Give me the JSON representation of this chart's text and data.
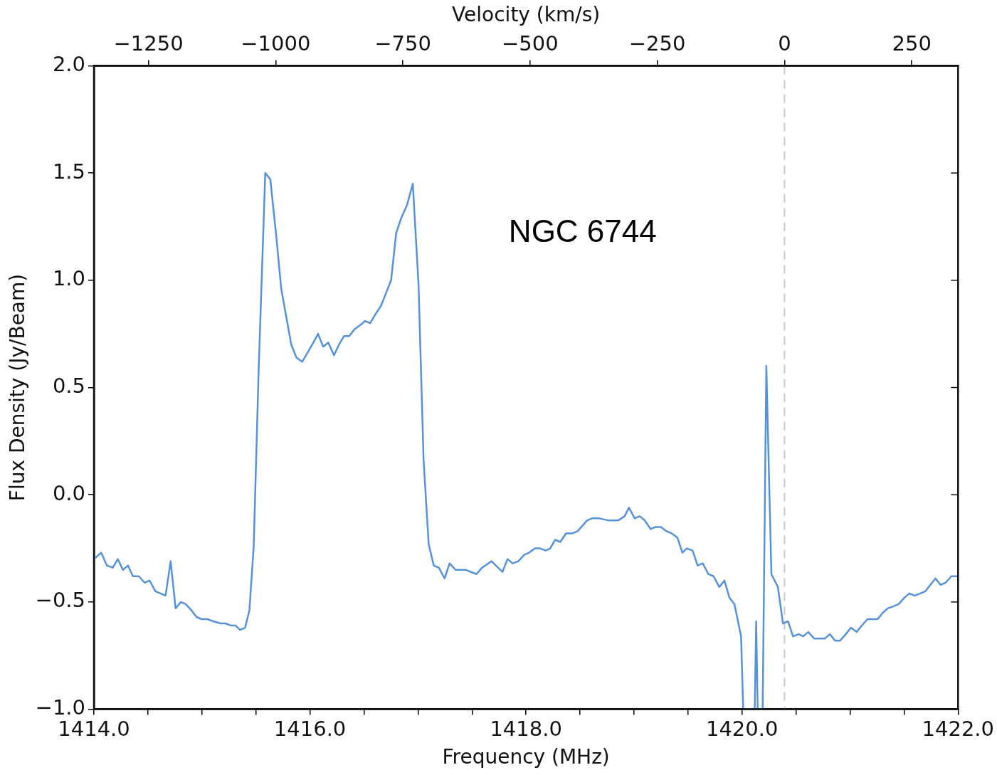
{
  "chart_data": {
    "type": "line",
    "xlabel": "Frequency (MHz)",
    "ylabel": "Flux Density (Jy/Beam)",
    "x2label": "Velocity (km/s)",
    "annotations": [
      "NGC 6744"
    ],
    "xlim": [
      1414,
      1422
    ],
    "xticks": [
      {
        "value": 1414,
        "label": "1414.0"
      },
      {
        "value": 1414.5,
        "label": null
      },
      {
        "value": 1415,
        "label": null
      },
      {
        "value": 1415.5,
        "label": null
      },
      {
        "value": 1416,
        "label": "1416.0"
      },
      {
        "value": 1416.5,
        "label": null
      },
      {
        "value": 1417,
        "label": null
      },
      {
        "value": 1417.5,
        "label": null
      },
      {
        "value": 1418,
        "label": "1418.0"
      },
      {
        "value": 1418.5,
        "label": null
      },
      {
        "value": 1419,
        "label": null
      },
      {
        "value": 1419.5,
        "label": null
      },
      {
        "value": 1420,
        "label": "1420.0"
      },
      {
        "value": 1420.5,
        "label": null
      },
      {
        "value": 1421,
        "label": null
      },
      {
        "value": 1421.5,
        "label": null
      },
      {
        "value": 1422,
        "label": "1422.0"
      }
    ],
    "x2lim": [
      -1357,
      341
    ],
    "x2ticks": [
      {
        "value": -1250,
        "label": "−1250"
      },
      {
        "value": -1000,
        "label": "−1000"
      },
      {
        "value": -750,
        "label": "−750"
      },
      {
        "value": -500,
        "label": "−500"
      },
      {
        "value": -250,
        "label": "−250"
      },
      0,
      250
    ],
    "ylim": [
      -1,
      2
    ],
    "yticks": [
      {
        "value": -1,
        "label": "−1.0"
      },
      {
        "value": -0.5,
        "label": "−0.5"
      },
      {
        "value": 0,
        "label": "0.0"
      },
      {
        "value": 0.5,
        "label": "0.5"
      },
      {
        "value": 1,
        "label": "1.0"
      },
      {
        "value": 1.5,
        "label": "1.5"
      },
      {
        "value": 2,
        "label": "2.0"
      }
    ],
    "grid": false,
    "legend": false,
    "marker": "none",
    "line_style": "solid",
    "ref_lines": [
      {
        "axis": "x2",
        "value": 0,
        "color": "#c8c8c8",
        "line_style": "dashed"
      }
    ],
    "series": [
      {
        "color": "#5792d6",
        "x": [
          1414.0,
          1414.067,
          1414.12,
          1414.174,
          1414.221,
          1414.268,
          1414.315,
          1414.361,
          1414.415,
          1414.469,
          1414.515,
          1414.569,
          1414.616,
          1414.663,
          1414.71,
          1414.756,
          1414.803,
          1414.85,
          1414.904,
          1414.95,
          1414.997,
          1415.051,
          1415.104,
          1415.171,
          1415.218,
          1415.272,
          1415.312,
          1415.352,
          1415.399,
          1415.439,
          1415.479,
          1415.526,
          1415.586,
          1415.633,
          1415.687,
          1415.734,
          1415.78,
          1415.827,
          1415.874,
          1415.928,
          1415.975,
          1416.021,
          1416.075,
          1416.122,
          1416.169,
          1416.222,
          1416.269,
          1416.316,
          1416.363,
          1416.41,
          1416.463,
          1416.51,
          1416.557,
          1416.604,
          1416.657,
          1416.704,
          1416.751,
          1416.798,
          1416.845,
          1416.898,
          1416.952,
          1417.005,
          1417.052,
          1417.099,
          1417.146,
          1417.193,
          1417.246,
          1417.293,
          1417.347,
          1417.44,
          1417.541,
          1417.594,
          1417.681,
          1417.782,
          1417.829,
          1417.876,
          1417.929,
          1417.983,
          1418.029,
          1418.083,
          1418.13,
          1418.183,
          1418.224,
          1418.27,
          1418.317,
          1418.371,
          1418.431,
          1418.478,
          1418.565,
          1418.612,
          1418.679,
          1418.766,
          1418.813,
          1418.853,
          1418.913,
          1418.953,
          1419.007,
          1419.054,
          1419.1,
          1419.154,
          1419.201,
          1419.248,
          1419.301,
          1419.348,
          1419.402,
          1419.448,
          1419.489,
          1419.542,
          1419.589,
          1419.636,
          1419.689,
          1419.736,
          1419.79,
          1419.837,
          1419.884,
          1419.93,
          1419.991,
          1420.011,
          1420.118,
          1420.131,
          1420.145,
          1420.191,
          1420.225,
          1420.272,
          1420.332,
          1420.379,
          1420.426,
          1420.472,
          1420.526,
          1420.566,
          1420.613,
          1420.667,
          1420.713,
          1420.767,
          1420.814,
          1420.861,
          1420.908,
          1420.961,
          1421.008,
          1421.062,
          1421.108,
          1421.162,
          1421.209,
          1421.256,
          1421.303,
          1421.349,
          1421.403,
          1421.45,
          1421.503,
          1421.55,
          1421.597,
          1421.651,
          1421.697,
          1421.744,
          1421.791,
          1421.838,
          1421.885,
          1421.938,
          1422.0
        ],
        "values": [
          -0.3,
          -0.27,
          -0.33,
          -0.34,
          -0.3,
          -0.35,
          -0.33,
          -0.38,
          -0.38,
          -0.41,
          -0.4,
          -0.45,
          -0.46,
          -0.47,
          -0.31,
          -0.53,
          -0.5,
          -0.51,
          -0.54,
          -0.57,
          -0.58,
          -0.58,
          -0.59,
          -0.6,
          -0.6,
          -0.61,
          -0.61,
          -0.63,
          -0.62,
          -0.54,
          -0.24,
          0.6,
          1.5,
          1.47,
          1.21,
          0.96,
          0.83,
          0.7,
          0.64,
          0.62,
          0.66,
          0.7,
          0.75,
          0.69,
          0.71,
          0.65,
          0.7,
          0.74,
          0.74,
          0.77,
          0.79,
          0.81,
          0.8,
          0.84,
          0.88,
          0.94,
          1.0,
          1.22,
          1.29,
          1.35,
          1.45,
          0.98,
          0.16,
          -0.23,
          -0.33,
          -0.34,
          -0.39,
          -0.32,
          -0.35,
          -0.35,
          -0.37,
          -0.34,
          -0.31,
          -0.36,
          -0.3,
          -0.32,
          -0.31,
          -0.28,
          -0.27,
          -0.25,
          -0.25,
          -0.26,
          -0.25,
          -0.21,
          -0.22,
          -0.18,
          -0.18,
          -0.17,
          -0.12,
          -0.11,
          -0.11,
          -0.12,
          -0.12,
          -0.12,
          -0.1,
          -0.06,
          -0.11,
          -0.1,
          -0.12,
          -0.16,
          -0.15,
          -0.15,
          -0.17,
          -0.18,
          -0.2,
          -0.27,
          -0.25,
          -0.26,
          -0.33,
          -0.32,
          -0.37,
          -0.38,
          -0.43,
          -0.4,
          -0.48,
          -0.51,
          -0.66,
          -1.0,
          -1.0,
          -0.59,
          -1.0,
          -1.0,
          0.6,
          -0.37,
          -0.43,
          -0.6,
          -0.59,
          -0.66,
          -0.65,
          -0.66,
          -0.64,
          -0.67,
          -0.67,
          -0.67,
          -0.65,
          -0.68,
          -0.68,
          -0.65,
          -0.62,
          -0.64,
          -0.61,
          -0.58,
          -0.58,
          -0.58,
          -0.55,
          -0.53,
          -0.52,
          -0.51,
          -0.48,
          -0.46,
          -0.47,
          -0.46,
          -0.45,
          -0.42,
          -0.39,
          -0.42,
          -0.41,
          -0.38,
          -0.38
        ]
      }
    ]
  }
}
